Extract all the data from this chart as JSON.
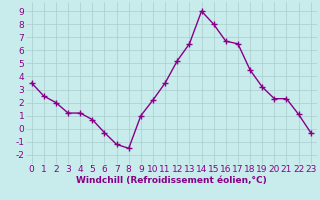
{
  "x": [
    0,
    1,
    2,
    3,
    4,
    5,
    6,
    7,
    8,
    9,
    10,
    11,
    12,
    13,
    14,
    15,
    16,
    17,
    18,
    19,
    20,
    21,
    22,
    23
  ],
  "y": [
    3.5,
    2.5,
    2.0,
    1.2,
    1.2,
    0.7,
    -0.3,
    -1.2,
    -1.5,
    1.0,
    2.2,
    3.5,
    5.2,
    6.5,
    9.0,
    8.0,
    6.7,
    6.5,
    4.5,
    3.2,
    2.3,
    2.3,
    1.1,
    -0.3
  ],
  "line_color": "#880088",
  "marker": "+",
  "marker_size": 4,
  "linewidth": 1.0,
  "xlabel": "Windchill (Refroidissement éolien,°C)",
  "xlabel_color": "#880088",
  "ylabel_ticks": [
    -2,
    -1,
    0,
    1,
    2,
    3,
    4,
    5,
    6,
    7,
    8,
    9
  ],
  "xlim": [
    -0.5,
    23.5
  ],
  "ylim": [
    -2.7,
    9.7
  ],
  "background_color": "#c8ecec",
  "grid_color": "#aacccc",
  "tick_color": "#880088",
  "label_fontsize": 6.5,
  "tick_fontsize": 6.5,
  "markeredgewidth": 1.0
}
